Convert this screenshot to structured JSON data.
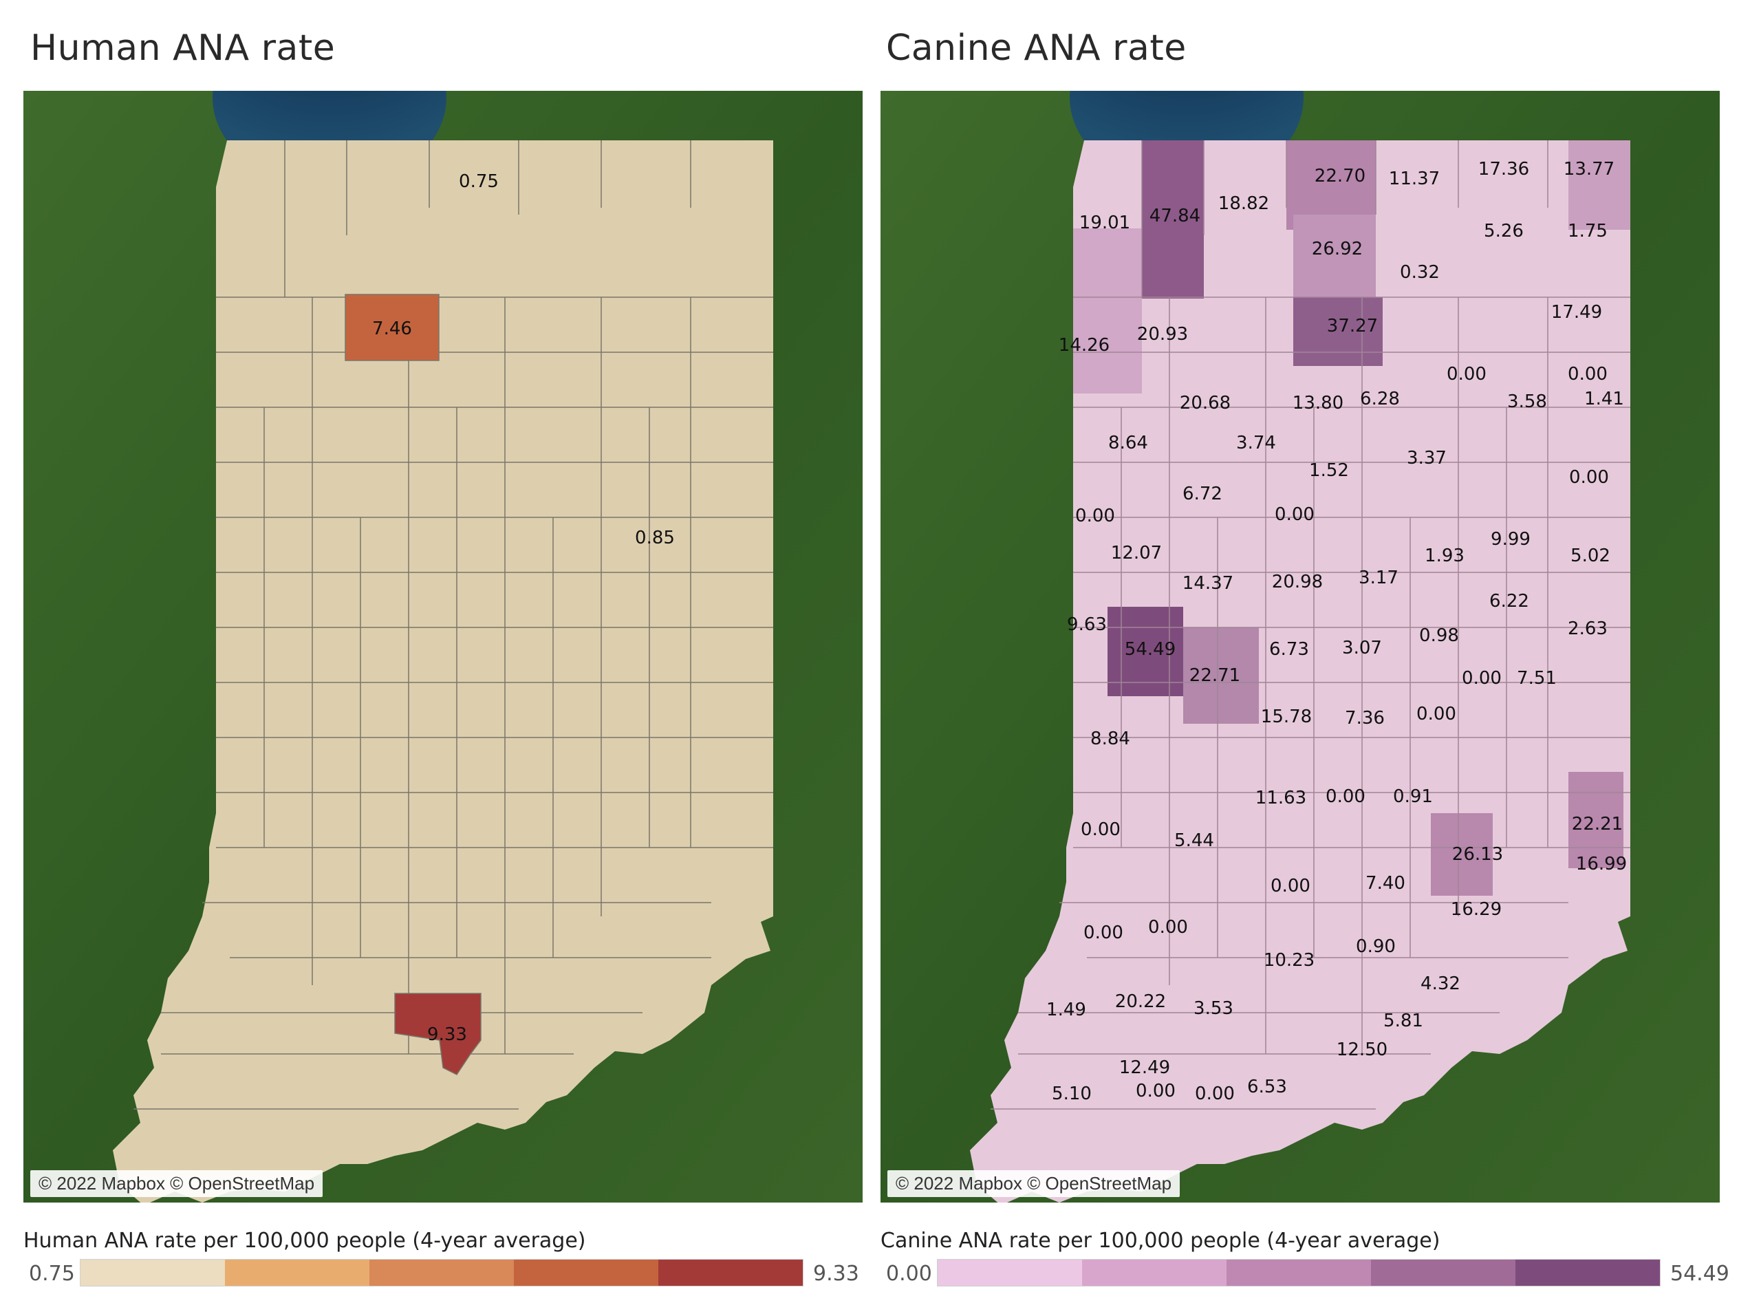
{
  "panels": [
    {
      "id": "human",
      "title": "Human ANA rate",
      "attribution": "© 2022 Mapbox © OpenStreetMap",
      "legend": {
        "title": "Human ANA rate per 100,000 people (4-year average)",
        "min": "0.75",
        "max": "9.33",
        "colors": [
          "#ecdcc0",
          "#e8ad6e",
          "#d98858",
          "#c4643e",
          "#a33a38"
        ]
      },
      "base_color": "#ddcfae",
      "highlights": [
        {
          "label": "7.46",
          "color": "#c4643e"
        },
        {
          "label": "9.33",
          "color": "#a33a38"
        }
      ],
      "labels": [
        "0.75",
        "7.46",
        "0.85",
        "9.33"
      ]
    },
    {
      "id": "canine",
      "title": "Canine ANA rate",
      "attribution": "© 2022 Mapbox © OpenStreetMap",
      "legend": {
        "title": "Canine ANA rate per 100,000 people (4-year average)",
        "min": "0.00",
        "max": "54.49",
        "colors": [
          "#ecc8e4",
          "#d8a6cc",
          "#bf88b2",
          "#a16b98",
          "#7e4c7c"
        ]
      },
      "base_color": "#e6cadb",
      "labels": [
        "19.01",
        "47.84",
        "18.82",
        "22.70",
        "11.37",
        "17.36",
        "13.77",
        "5.26",
        "1.75",
        "26.92",
        "0.32",
        "37.27",
        "17.49",
        "14.26",
        "20.93",
        "0.00",
        "0.00",
        "6.28",
        "20.68",
        "13.80",
        "3.58",
        "1.41",
        "8.64",
        "3.74",
        "3.37",
        "1.52",
        "0.00",
        "6.72",
        "0.00",
        "0.00",
        "9.99",
        "12.07",
        "1.93",
        "5.02",
        "14.37",
        "20.98",
        "3.17",
        "6.22",
        "9.63",
        "2.63",
        "54.49",
        "6.73",
        "3.07",
        "0.98",
        "22.71",
        "0.00",
        "7.51",
        "15.78",
        "7.36",
        "0.00",
        "8.84",
        "11.63",
        "0.00",
        "0.91",
        "0.00",
        "22.21",
        "5.44",
        "26.13",
        "16.99",
        "7.40",
        "0.00",
        "16.29",
        "0.00",
        "0.00",
        "0.90",
        "10.23",
        "4.32",
        "1.49",
        "20.22",
        "3.53",
        "5.81",
        "12.50",
        "12.49",
        "0.00",
        "5.10",
        "0.00",
        "6.53"
      ]
    }
  ]
}
